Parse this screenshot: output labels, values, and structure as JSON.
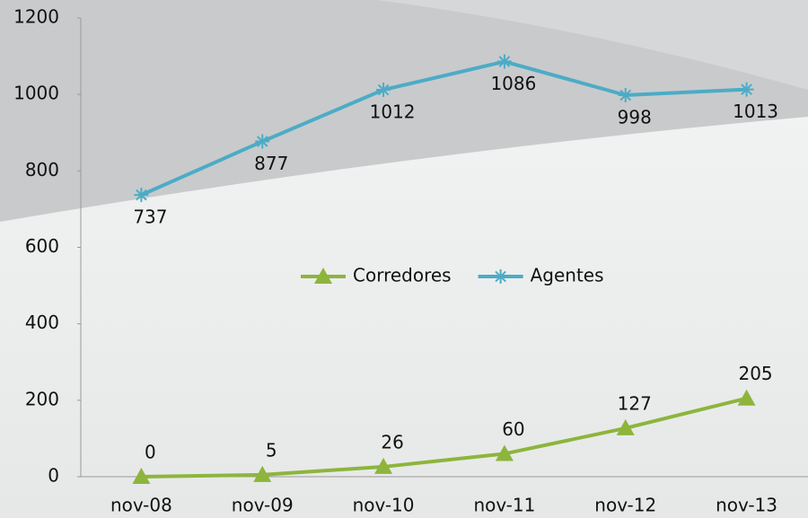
{
  "chart_data": {
    "type": "line",
    "categories": [
      "nov-08",
      "nov-09",
      "nov-10",
      "nov-11",
      "nov-12",
      "nov-13"
    ],
    "series": [
      {
        "name": "Corredores",
        "color": "#8db53c",
        "marker": "triangle",
        "values": [
          0,
          5,
          26,
          60,
          127,
          205
        ]
      },
      {
        "name": "Agentes",
        "color": "#4bacc6",
        "marker": "asterisk",
        "values": [
          737,
          877,
          1012,
          1086,
          998,
          1013
        ]
      }
    ],
    "ylim": [
      0,
      1200
    ],
    "yticks": [
      0,
      200,
      400,
      600,
      800,
      1000,
      1200
    ],
    "legend": "center"
  }
}
